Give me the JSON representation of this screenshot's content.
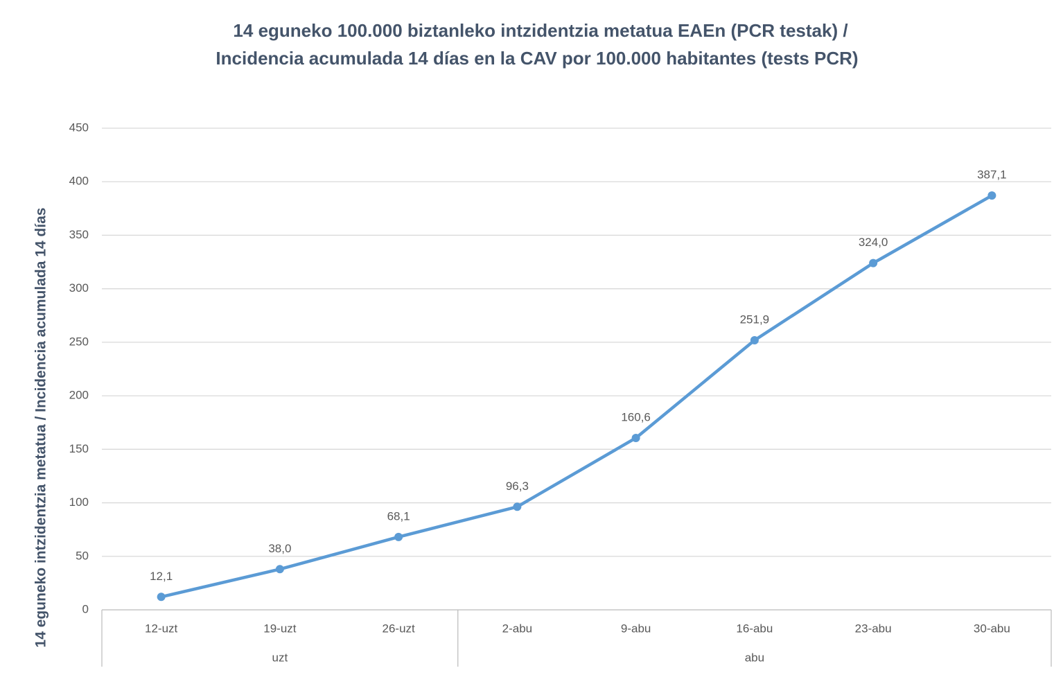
{
  "chart_data": {
    "type": "line",
    "title": [
      "14 eguneko 100.000 biztanleko intzidentzia metatua EAEn (PCR testak) /",
      "Incidencia acumulada 14 días en la CAV por 100.000 habitantes (tests PCR)"
    ],
    "y_label": "14 eguneko intzidentzia metatua / Incidencia acumulada  14 días",
    "categories": [
      "12-uzt",
      "19-uzt",
      "26-uzt",
      "2-abu",
      "9-abu",
      "16-abu",
      "23-abu",
      "30-abu"
    ],
    "groups": [
      {
        "label": "uzt",
        "count": 3
      },
      {
        "label": "abu",
        "count": 5
      }
    ],
    "values": [
      12.1,
      38.0,
      68.1,
      96.3,
      160.6,
      251.9,
      324.0,
      387.1
    ],
    "value_labels": [
      "12,1",
      "38,0",
      "68,1",
      "96,3",
      "160,6",
      "251,9",
      "324,0",
      "387,1"
    ],
    "color": "#5b9bd5",
    "ylim": [
      0,
      450
    ],
    "yticks": [
      0,
      50,
      100,
      150,
      200,
      250,
      300,
      350,
      400,
      450
    ],
    "grid": true
  }
}
